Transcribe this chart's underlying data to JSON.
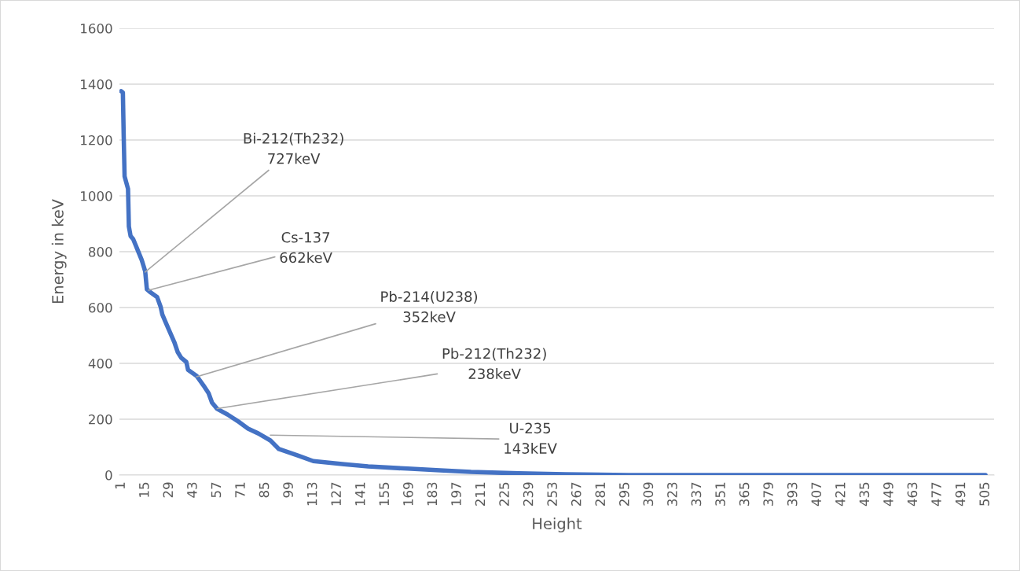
{
  "chart_data": {
    "type": "line",
    "xlabel": "Height",
    "ylabel": "Energy in keV",
    "series": [
      {
        "color": "#4472c4",
        "x": [
          1,
          2,
          2.5,
          3,
          5,
          5.5,
          6.5,
          8,
          10,
          13,
          15,
          16,
          18,
          22,
          24,
          25,
          27,
          29,
          32,
          34,
          36,
          39,
          40,
          45,
          49,
          52,
          54,
          57,
          63,
          70,
          75,
          81,
          88,
          93,
          104,
          113,
          131,
          145,
          168,
          187,
          205,
          233,
          260,
          297,
          505
        ],
        "values": [
          1375,
          1370,
          1210,
          1070,
          1025,
          890,
          856,
          845,
          815,
          770,
          730,
          665,
          655,
          637,
          603,
          575,
          546,
          518,
          476,
          440,
          420,
          405,
          377,
          355,
          321,
          293,
          259,
          237,
          217,
          189,
          166,
          149,
          124,
          93,
          70,
          50,
          39,
          31,
          23,
          17,
          11,
          6,
          3,
          0,
          0
        ]
      }
    ],
    "xlim": [
      0,
      510
    ],
    "xticks": [
      1,
      15,
      29,
      43,
      57,
      71,
      85,
      99,
      113,
      127,
      141,
      155,
      169,
      183,
      197,
      211,
      225,
      239,
      253,
      267,
      281,
      295,
      309,
      323,
      337,
      351,
      365,
      379,
      393,
      407,
      421,
      435,
      449,
      463,
      477,
      491,
      505
    ],
    "ylim": [
      0,
      1600
    ],
    "yticks": [
      0,
      200,
      400,
      600,
      800,
      1000,
      1200,
      1400,
      1600
    ],
    "grid": "y",
    "marker": "none",
    "line_style": "solid",
    "annotations": [
      {
        "text": "Bi-212(Th232)\n727keV",
        "x": 15,
        "y": 727
      },
      {
        "text": "Cs-137\n662keV",
        "x": 17,
        "y": 662
      },
      {
        "text": "Pb-214(U238)\n352keV",
        "x": 45,
        "y": 352
      },
      {
        "text": "Pb-212(Th232)\n238keV",
        "x": 57,
        "y": 238
      },
      {
        "text": "U-235\n143kEV",
        "x": 88,
        "y": 143
      }
    ]
  }
}
